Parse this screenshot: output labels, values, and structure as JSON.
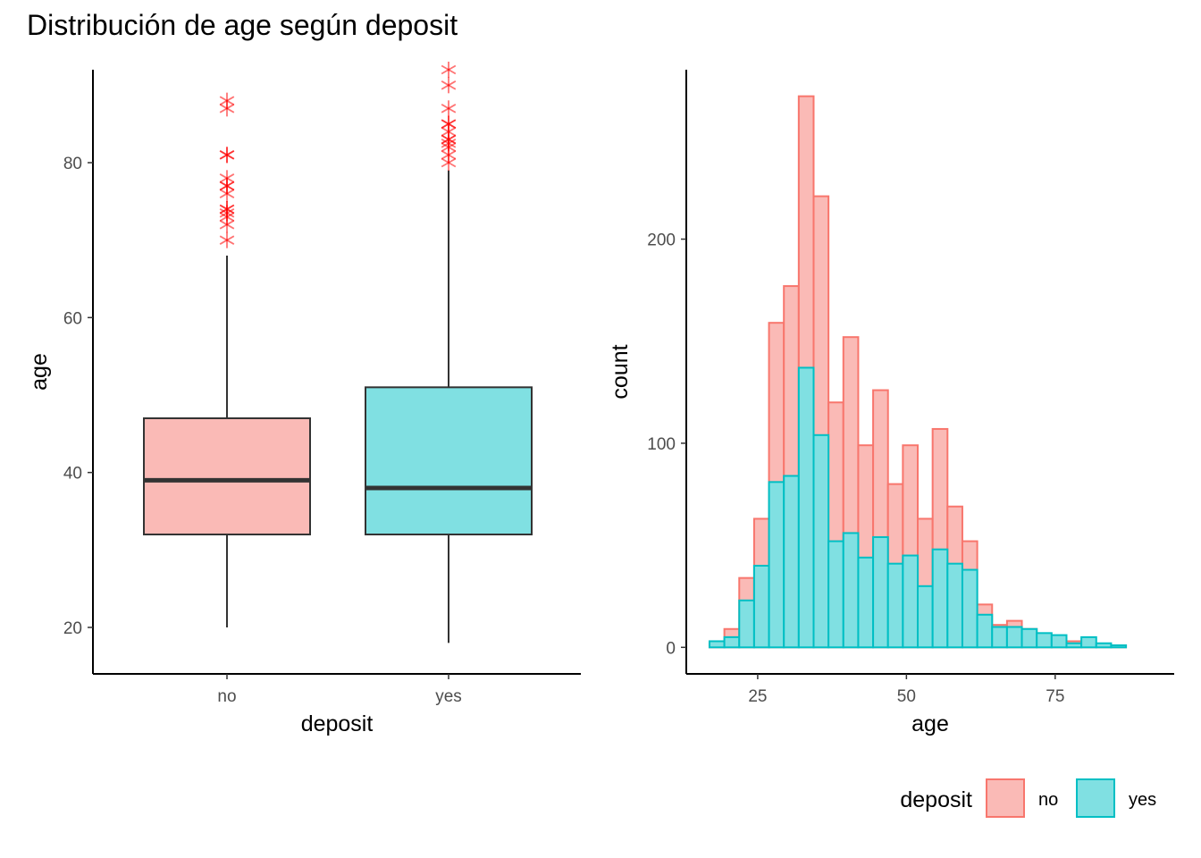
{
  "title": "Distribución de age según deposit",
  "colors": {
    "no": "#F8766D",
    "yes": "#00BFC4",
    "no_fill": "#FABAB6",
    "yes_fill": "#80E0E2"
  },
  "chart_data": [
    {
      "type": "box",
      "xlabel": "deposit",
      "ylabel": "age",
      "ylim": [
        14,
        92
      ],
      "yticks": [
        20,
        40,
        60,
        80
      ],
      "categories": [
        "no",
        "yes"
      ],
      "boxes": [
        {
          "name": "no",
          "min": 20,
          "q1": 32,
          "median": 39,
          "q3": 47,
          "max": 68,
          "outliers": [
            70,
            72,
            73,
            73.5,
            74,
            74,
            76,
            77,
            77,
            78,
            81,
            81,
            87,
            88
          ]
        },
        {
          "name": "yes",
          "min": 18,
          "q1": 32,
          "median": 38,
          "q3": 51,
          "max": 79,
          "outliers": [
            80,
            81,
            82,
            82.5,
            83,
            83,
            84,
            85,
            85,
            87,
            90,
            92
          ]
        }
      ]
    },
    {
      "type": "histogram",
      "xlabel": "age",
      "ylabel": "count",
      "xlim": [
        13,
        95
      ],
      "ylim": [
        -13,
        283
      ],
      "xticks": [
        25,
        50,
        75
      ],
      "yticks": [
        0,
        100,
        200
      ],
      "x_start": 16.9,
      "bin_width": 2.5,
      "series": [
        {
          "name": "no",
          "values": [
            2,
            9,
            34,
            63,
            159,
            177,
            270,
            221,
            120,
            152,
            99,
            126,
            80,
            99,
            63,
            107,
            69,
            52,
            21,
            11,
            13,
            9,
            6,
            4,
            3,
            1,
            1,
            1
          ]
        },
        {
          "name": "yes",
          "values": [
            3,
            5,
            23,
            40,
            81,
            84,
            137,
            104,
            52,
            56,
            44,
            54,
            41,
            45,
            30,
            48,
            41,
            38,
            16,
            10,
            10,
            9,
            7,
            6,
            2,
            5,
            2,
            1
          ]
        }
      ]
    }
  ],
  "legend": {
    "title": "deposit",
    "items": [
      "no",
      "yes"
    ]
  }
}
